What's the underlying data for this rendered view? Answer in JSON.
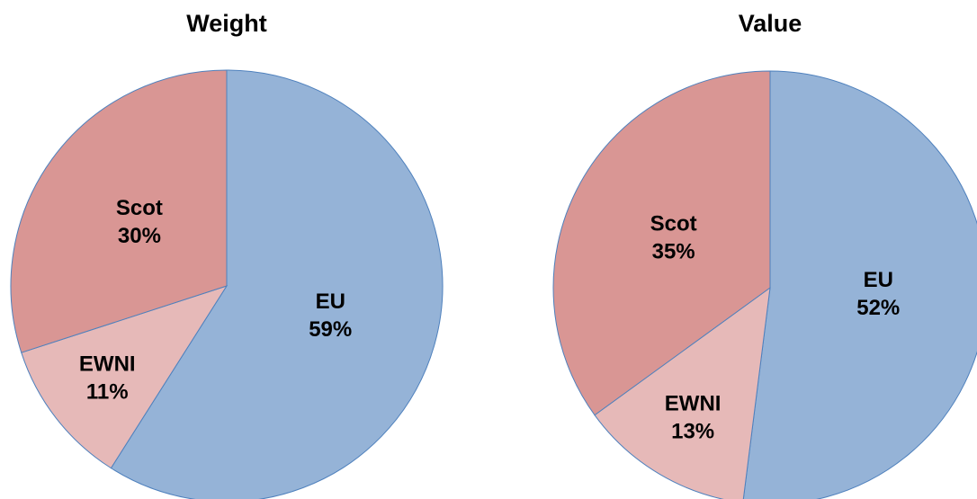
{
  "chart_data": [
    {
      "type": "pie",
      "title": "Weight",
      "categories": [
        "EU",
        "EWNI",
        "Scot"
      ],
      "values": [
        59,
        11,
        30
      ],
      "value_labels": [
        "59%",
        "11%",
        "30%"
      ],
      "colors": [
        "#95b3d7",
        "#e6b9b8",
        "#d99694"
      ]
    },
    {
      "type": "pie",
      "title": "Value",
      "categories": [
        "EU",
        "EWNI",
        "Scot"
      ],
      "values": [
        52,
        13,
        35
      ],
      "value_labels": [
        "52%",
        "13%",
        "35%"
      ],
      "colors": [
        "#95b3d7",
        "#e6b9b8",
        "#d99694"
      ]
    }
  ]
}
